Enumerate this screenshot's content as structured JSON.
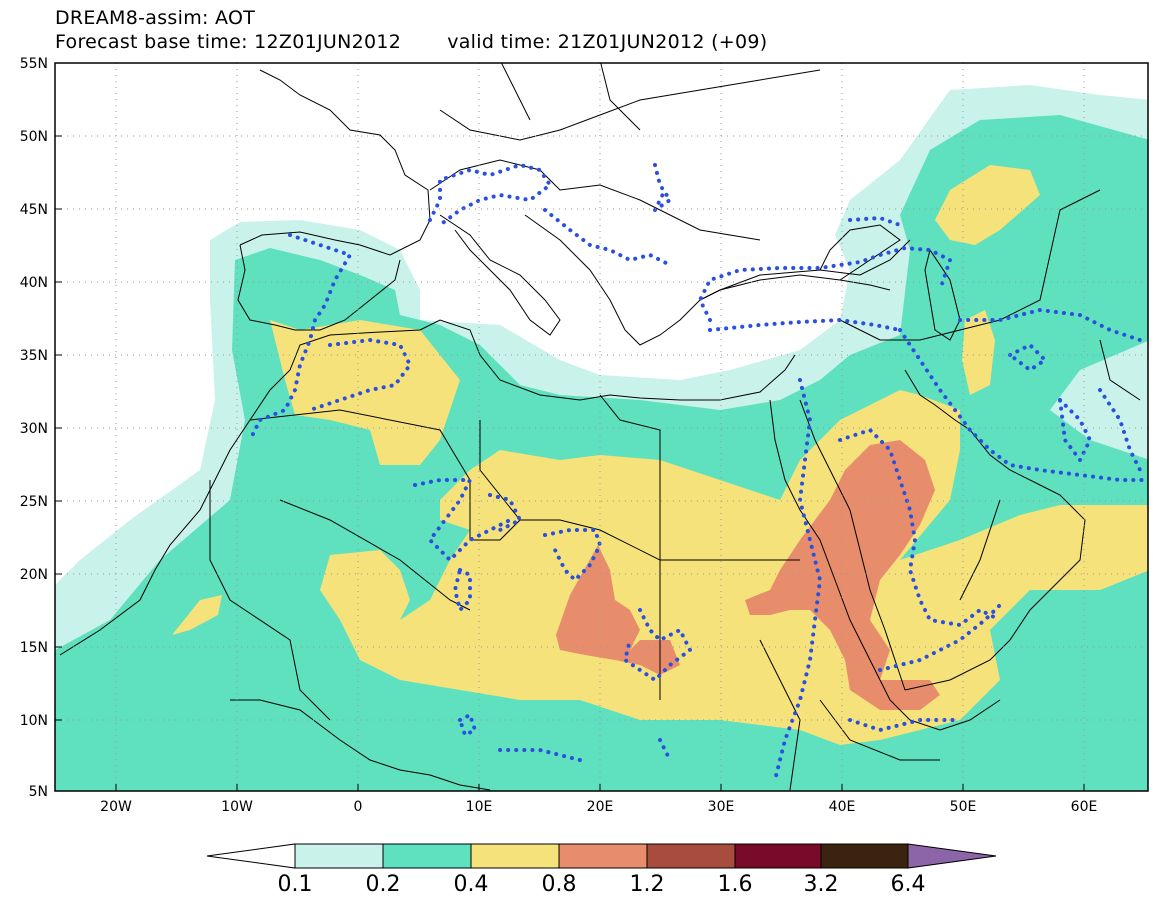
{
  "title": {
    "line1": "DREAM8-assim: AOT",
    "base_time": "Forecast base time: 12Z01JUN2012",
    "valid_time": "valid time: 21Z01JUN2012 (+09)"
  },
  "axes": {
    "lat_labels": [
      "55N",
      "50N",
      "45N",
      "40N",
      "35N",
      "30N",
      "25N",
      "20N",
      "15N",
      "10N",
      "5N"
    ],
    "lon_labels": [
      "20W",
      "10W",
      "0",
      "10E",
      "20E",
      "30E",
      "40E",
      "50E",
      "60E"
    ]
  },
  "colorbar": {
    "ticks": [
      "0.1",
      "0.2",
      "0.4",
      "0.8",
      "1.2",
      "1.6",
      "3.2",
      "6.4"
    ],
    "colors": [
      "#ffffff",
      "#c9f2ea",
      "#5fe0be",
      "#f5e27a",
      "#e88d6c",
      "#a84c3e",
      "#7a0a2a",
      "#3a2410",
      "#8c64a8"
    ]
  },
  "fields": {
    "colors": {
      "c01": "#c9f2ea",
      "c02": "#5fe0be",
      "c04": "#f5e27a",
      "c08": "#e88d6c"
    },
    "contour_color": "#2b50e0",
    "border_color": "#000000"
  }
}
